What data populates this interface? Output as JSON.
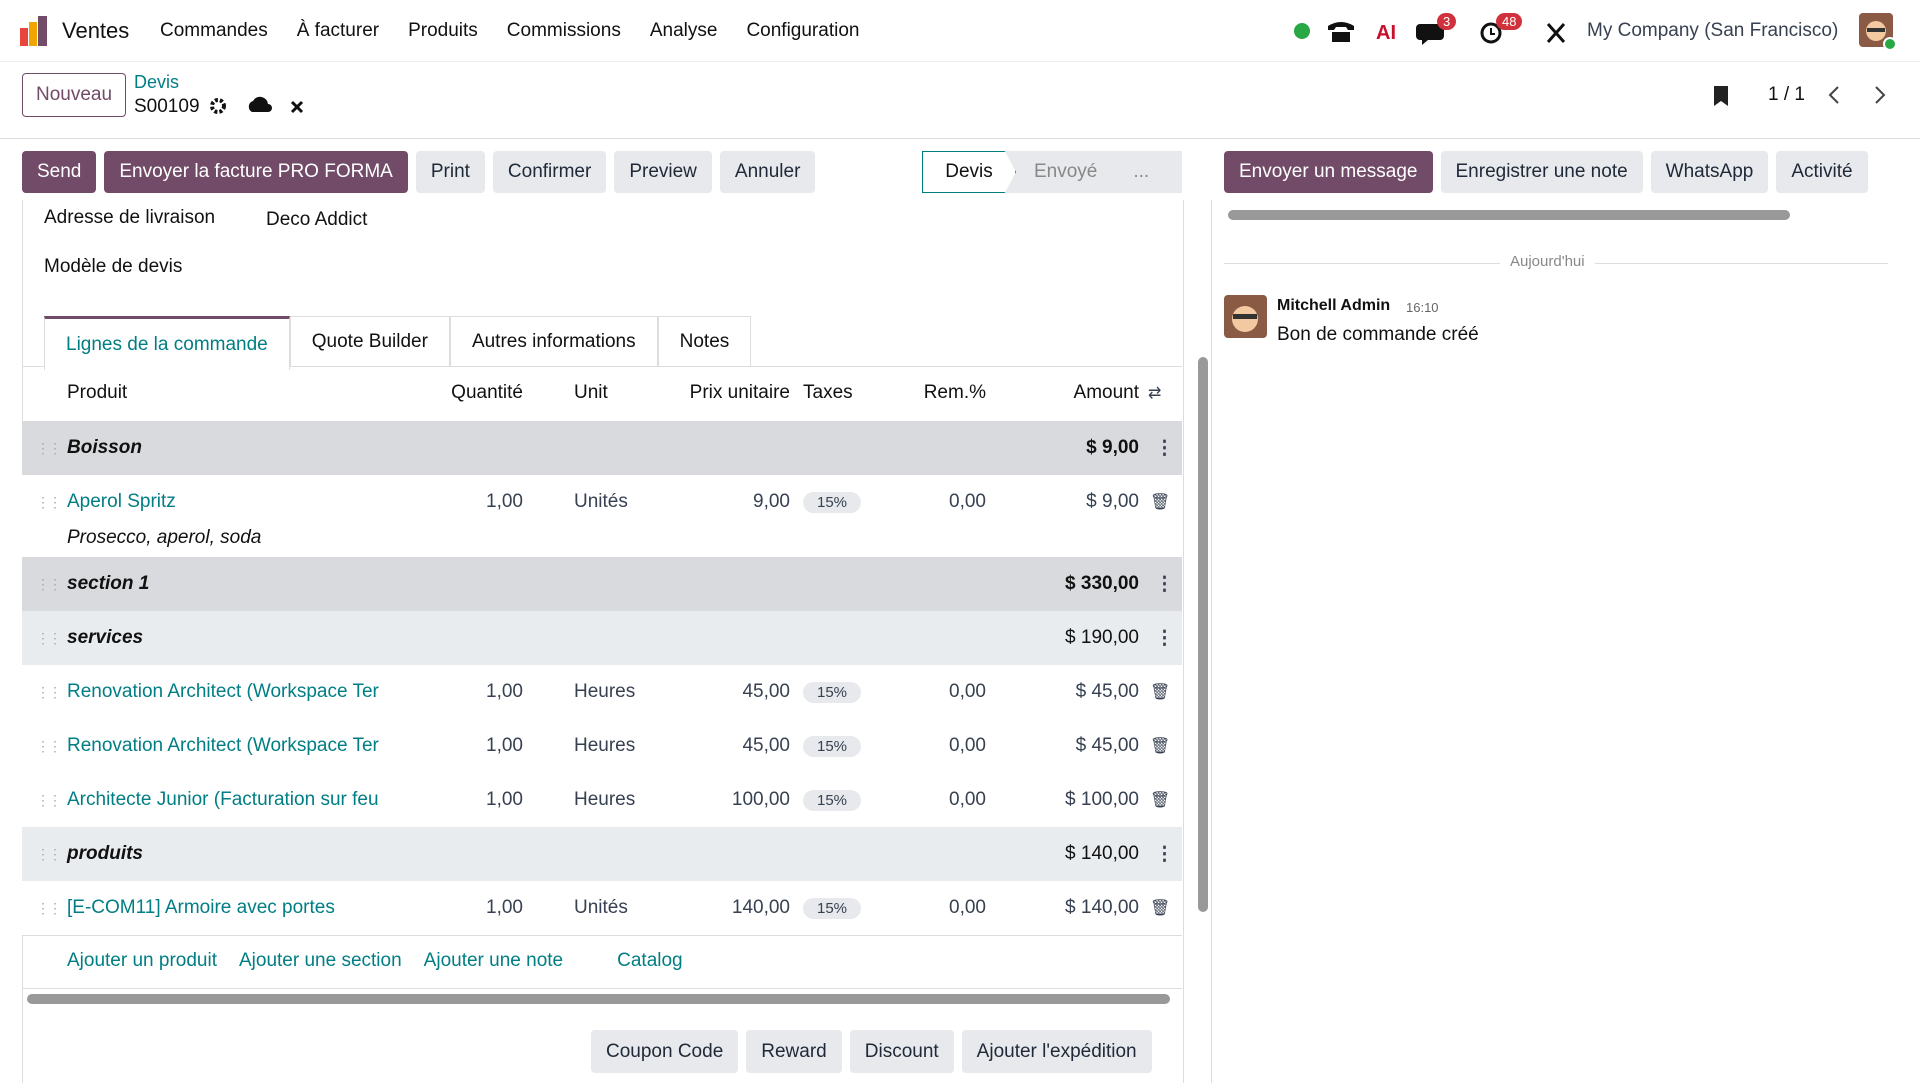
{
  "navbar": {
    "app": "Ventes",
    "menu": [
      "Commandes",
      "À facturer",
      "Produits",
      "Commissions",
      "Analyse",
      "Configuration"
    ],
    "messages_badge": "3",
    "activities_badge": "48",
    "company": "My Company (San Francisco)"
  },
  "control": {
    "new_button": "Nouveau",
    "breadcrumb_parent": "Devis",
    "record": "S00109",
    "pager": "1 / 1"
  },
  "actions": [
    "Send",
    "Envoyer la facture PRO FORMA",
    "Print",
    "Confirmer",
    "Preview",
    "Annuler"
  ],
  "statusbar": [
    "Devis",
    "Envoyé",
    "..."
  ],
  "fields": [
    {
      "label": "Adresse de livraison",
      "value": "Deco Addict"
    },
    {
      "label": "Modèle de devis"
    }
  ],
  "tabs": [
    "Lignes de la commande",
    "Quote Builder",
    "Autres informations",
    "Notes"
  ],
  "columns": [
    "Produit",
    "Quantité",
    "Unit",
    "Prix unitaire",
    "Taxes",
    "Rem.%",
    "Amount"
  ],
  "lines": [
    {
      "type": "section",
      "name": "Boisson",
      "amount": "$ 9,00"
    },
    {
      "type": "product",
      "name": "Aperol Spritz",
      "description": "Prosecco, aperol, soda",
      "quantity": "1,00",
      "unit": "Unités",
      "price": "9,00",
      "tax": "15%",
      "discount": "0,00",
      "amount": "$ 9,00"
    },
    {
      "type": "section",
      "name": "section 1",
      "amount": "$ 330,00"
    },
    {
      "type": "subsection",
      "name": "services",
      "amount": "$ 190,00"
    },
    {
      "type": "product",
      "name": "Renovation Architect (Workspace Ter",
      "quantity": "1,00",
      "unit": "Heures",
      "price": "45,00",
      "tax": "15%",
      "discount": "0,00",
      "amount": "$ 45,00"
    },
    {
      "type": "product",
      "name": "Renovation Architect (Workspace Ter",
      "quantity": "1,00",
      "unit": "Heures",
      "price": "45,00",
      "tax": "15%",
      "discount": "0,00",
      "amount": "$ 45,00"
    },
    {
      "type": "product",
      "name": "Architecte Junior (Facturation sur feu",
      "quantity": "1,00",
      "unit": "Heures",
      "price": "100,00",
      "tax": "15%",
      "discount": "0,00",
      "amount": "$ 100,00"
    },
    {
      "type": "subsection",
      "name": "produits",
      "amount": "$ 140,00"
    },
    {
      "type": "product",
      "name": "[E-COM11] Armoire avec portes",
      "quantity": "1,00",
      "unit": "Unités",
      "price": "140,00",
      "tax": "15%",
      "discount": "0,00",
      "amount": "$ 140,00"
    }
  ],
  "add_links": [
    "Ajouter un produit",
    "Ajouter une section",
    "Ajouter une note",
    "Catalog"
  ],
  "footer_buttons": [
    "Coupon Code",
    "Reward",
    "Discount",
    "Ajouter l'expédition"
  ],
  "chatter": {
    "buttons": [
      "Envoyer un message",
      "Enregistrer une note",
      "WhatsApp",
      "Activité"
    ],
    "date": "Aujourd'hui",
    "author": "Mitchell Admin",
    "time": "16:10",
    "message": "Bon de commande créé"
  }
}
